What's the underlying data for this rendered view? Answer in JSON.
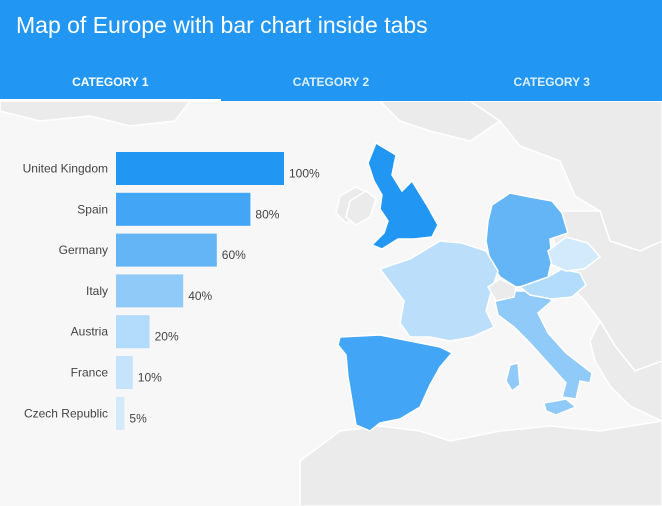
{
  "header": {
    "title": "Map of Europe with bar chart inside tabs"
  },
  "tabs": [
    {
      "label": "CATEGORY 1",
      "active": true
    },
    {
      "label": "CATEGORY 2",
      "active": false
    },
    {
      "label": "CATEGORY 3",
      "active": false
    }
  ],
  "colors": {
    "header_bg": "#2196f3",
    "land_bg": "#ebebeb",
    "border": "#ffffff"
  },
  "chart_data": {
    "type": "bar",
    "orientation": "horizontal",
    "categories": [
      "United Kingdom",
      "Spain",
      "Germany",
      "Italy",
      "Austria",
      "France",
      "Czech Republic"
    ],
    "values": [
      100,
      80,
      60,
      40,
      20,
      10,
      5
    ],
    "value_suffix": "%",
    "colors": [
      "#2196f3",
      "#42a5f5",
      "#64b5f6",
      "#90caf9",
      "#b3dbfb",
      "#c5e3fb",
      "#d3eafc"
    ],
    "xlim": [
      0,
      100
    ]
  }
}
